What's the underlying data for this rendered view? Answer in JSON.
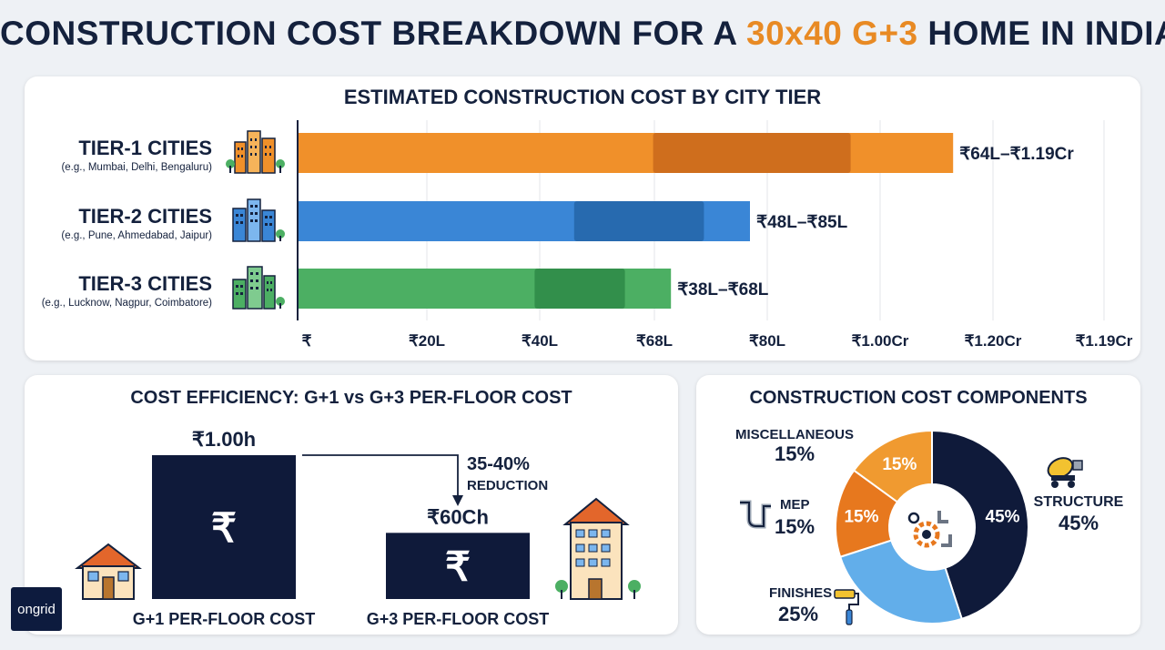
{
  "title": {
    "part1": "CONSTRUCTION COST BREAKDOWN FOR A ",
    "highlight": "30x40 G+3",
    "part2": " HOME IN INDIA"
  },
  "tier_chart": {
    "title": "ESTIMATED CONSTRUCTION COST BY CITY TIER",
    "tiers": [
      {
        "name": "TIER-1 CITIES",
        "examples": "(e.g., Mumbai, Delhi, Bengaluru)",
        "label": "₹64L–₹1.19Cr",
        "color": "#f0902a",
        "dark": "#c9691b",
        "end": 1.16,
        "band": [
          0.63,
          0.98
        ],
        "icon": "city-buildings-orange-icon"
      },
      {
        "name": "TIER-2 CITIES",
        "examples": "(e.g., Pune, Ahmedabad, Jaipur)",
        "label": "₹48L–₹85L",
        "color": "#3a86d6",
        "dark": "#2565a8",
        "end": 0.8,
        "band": [
          0.49,
          0.72
        ],
        "icon": "city-buildings-blue-icon"
      },
      {
        "name": "TIER-3 CITIES",
        "examples": "(e.g., Lucknow, Nagpur, Coimbatore)",
        "label": "₹38L–₹68L",
        "color": "#4caf63",
        "dark": "#2e8a46",
        "end": 0.66,
        "band": [
          0.42,
          0.58
        ],
        "icon": "city-buildings-green-icon"
      }
    ],
    "ticks": [
      "₹",
      "₹20L",
      "₹40L",
      "₹68L",
      "₹80L",
      "₹1.00Cr",
      "₹1.20Cr",
      "₹1.19Cr"
    ]
  },
  "efficiency": {
    "title": "COST EFFICIENCY: G+1 vs G+3 PER-FLOOR COST",
    "bar1": {
      "value_label": "₹1.00h",
      "symbol": "₹",
      "caption": "G+1 PER-FLOOR COST",
      "relative": 1.0
    },
    "bar2": {
      "value_label": "₹60Ch",
      "symbol": "₹",
      "caption": "G+3 PER-FLOOR COST",
      "relative": 0.46
    },
    "reduction": {
      "line1": "35-40%",
      "line2": "REDUCTION"
    }
  },
  "components": {
    "title": "CONSTRUCTION COST COMPONENTS",
    "slices": [
      {
        "name": "STRUCTURE",
        "value": 45,
        "color": "#0f1a3a"
      },
      {
        "name": "FINISHES",
        "value": 25,
        "color": "#62aeea"
      },
      {
        "name": "MEP",
        "value": 15,
        "color": "#e7781e"
      },
      {
        "name": "MISCELLANEOUS",
        "value": 15,
        "color": "#f09a30"
      }
    ],
    "labels": {
      "structure": {
        "name": "STRUCTURE",
        "pct": "45%"
      },
      "finishes": {
        "name": "FINISHES",
        "pct": "25%"
      },
      "mep": {
        "name": "MEP",
        "pct": "15%"
      },
      "misc": {
        "name": "MISCELLANEOUS",
        "pct": "15%"
      }
    },
    "inner": {
      "structure": "45%",
      "mep": "15%",
      "misc": "15%"
    }
  },
  "logo": "ongrid",
  "chart_data": [
    {
      "type": "bar",
      "title": "ESTIMATED CONSTRUCTION COST BY CITY TIER",
      "categories": [
        "TIER-1 CITIES",
        "TIER-2 CITIES",
        "TIER-3 CITIES"
      ],
      "ranges": [
        [
          "₹64L",
          "₹1.19Cr"
        ],
        [
          "₹48L",
          "₹85L"
        ],
        [
          "₹38L",
          "₹68L"
        ]
      ],
      "tick_labels": [
        "₹",
        "₹20L",
        "₹40L",
        "₹68L",
        "₹80L",
        "₹1.00Cr",
        "₹1.20Cr",
        "₹1.19Cr"
      ]
    },
    {
      "type": "bar",
      "title": "COST EFFICIENCY: G+1 vs G+3 PER-FLOOR COST",
      "categories": [
        "G+1 PER-FLOOR COST",
        "G+3 PER-FLOOR COST"
      ],
      "value_labels": [
        "₹1.00h",
        "₹60Ch"
      ],
      "annotation": "35-40% REDUCTION"
    },
    {
      "type": "pie",
      "title": "CONSTRUCTION COST COMPONENTS",
      "categories": [
        "STRUCTURE",
        "FINISHES",
        "MEP",
        "MISCELLANEOUS"
      ],
      "values": [
        45,
        25,
        15,
        15
      ]
    }
  ]
}
